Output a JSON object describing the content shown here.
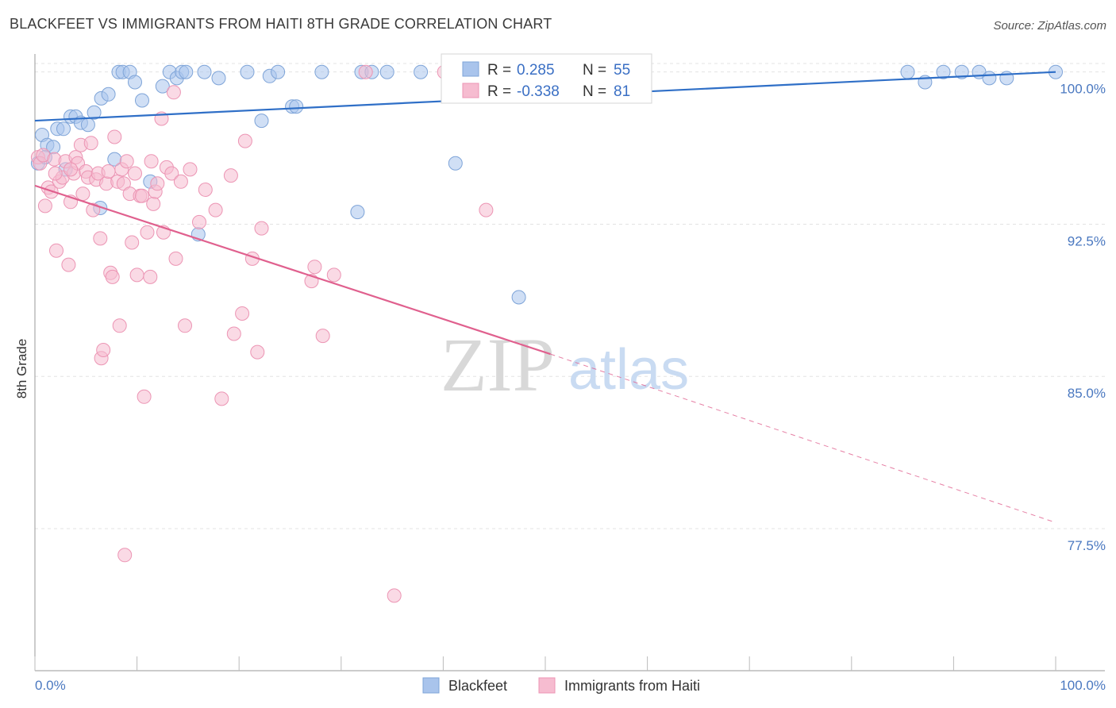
{
  "title": "BLACKFEET VS IMMIGRANTS FROM HAITI 8TH GRADE CORRELATION CHART",
  "source": "Source: ZipAtlas.com",
  "watermark": {
    "zip": "ZIP",
    "atlas": "atlas"
  },
  "chart_data": {
    "type": "scatter",
    "title": "BLACKFEET VS IMMIGRANTS FROM HAITI 8TH GRADE CORRELATION CHART",
    "xlabel": "",
    "ylabel": "8th Grade",
    "xlim": [
      0,
      100
    ],
    "ylim": [
      70.5,
      101.2
    ],
    "x_tick_labels": [
      "0.0%",
      "100.0%"
    ],
    "y_ticks": [
      {
        "value": 100.0,
        "label": "100.0%"
      },
      {
        "value": 92.5,
        "label": "92.5%"
      },
      {
        "value": 85.0,
        "label": "85.0%"
      },
      {
        "value": 77.5,
        "label": "77.5%"
      }
    ],
    "grid": true,
    "legend_position": "bottom",
    "stats": [
      {
        "r_label": "R =",
        "r_value": "0.285",
        "n_label": "N =",
        "n_value": "55"
      },
      {
        "r_label": "R =",
        "r_value": "-0.338",
        "n_label": "N =",
        "n_value": "81"
      }
    ],
    "series": [
      {
        "name": "Blackfeet",
        "color": "#a9c4ec",
        "stroke": "#7ea4d8",
        "line_color": "#2f6fc7",
        "trend": {
          "x0": 0,
          "y0": 97.6,
          "x1": 100,
          "y1": 100.0
        },
        "points": [
          [
            0.3,
            95.5
          ],
          [
            0.7,
            96.9
          ],
          [
            1.2,
            96.4
          ],
          [
            1.8,
            96.3
          ],
          [
            2.2,
            97.2
          ],
          [
            2.8,
            97.2
          ],
          [
            3.5,
            97.8
          ],
          [
            4.0,
            97.8
          ],
          [
            4.5,
            97.5
          ],
          [
            5.2,
            97.4
          ],
          [
            5.8,
            98.0
          ],
          [
            6.5,
            98.7
          ],
          [
            7.2,
            98.9
          ],
          [
            8.2,
            100.0
          ],
          [
            8.6,
            100.0
          ],
          [
            9.3,
            100.0
          ],
          [
            9.8,
            99.5
          ],
          [
            10.5,
            98.6
          ],
          [
            12.5,
            99.3
          ],
          [
            13.2,
            100.0
          ],
          [
            13.9,
            99.7
          ],
          [
            14.4,
            100.0
          ],
          [
            14.8,
            100.0
          ],
          [
            16.6,
            100.0
          ],
          [
            18.0,
            99.7
          ],
          [
            20.8,
            100.0
          ],
          [
            22.2,
            97.6
          ],
          [
            23.0,
            99.8
          ],
          [
            23.8,
            100.0
          ],
          [
            25.2,
            98.3
          ],
          [
            25.6,
            98.3
          ],
          [
            28.1,
            100.0
          ],
          [
            32.0,
            100.0
          ],
          [
            33.0,
            100.0
          ],
          [
            34.5,
            100.0
          ],
          [
            37.8,
            100.0
          ],
          [
            40.5,
            100.0
          ],
          [
            42.0,
            100.0
          ],
          [
            7.8,
            95.7
          ],
          [
            11.3,
            94.6
          ],
          [
            6.4,
            93.3
          ],
          [
            16.0,
            92.0
          ],
          [
            31.6,
            93.1
          ],
          [
            41.2,
            95.5
          ],
          [
            47.4,
            88.9
          ],
          [
            85.5,
            100.0
          ],
          [
            87.2,
            99.5
          ],
          [
            89.0,
            100.0
          ],
          [
            90.8,
            100.0
          ],
          [
            92.5,
            100.0
          ],
          [
            93.5,
            99.7
          ],
          [
            95.2,
            99.7
          ],
          [
            100.0,
            100.0
          ],
          [
            3.0,
            95.2
          ],
          [
            1.0,
            95.8
          ]
        ]
      },
      {
        "name": "Immigrants from Haiti",
        "color": "#f6bcd0",
        "stroke": "#ec95b4",
        "line_color": "#e0608e",
        "trend": {
          "x0": 0,
          "y0": 94.4,
          "x1": 50.5,
          "y1": 86.1
        },
        "trend_dashed": {
          "x0": 50.5,
          "y0": 86.1,
          "x1": 100,
          "y1": 77.8
        },
        "points": [
          [
            0.3,
            95.8
          ],
          [
            0.5,
            95.5
          ],
          [
            0.8,
            95.9
          ],
          [
            1.0,
            93.4
          ],
          [
            1.3,
            94.3
          ],
          [
            1.6,
            94.1
          ],
          [
            1.9,
            95.7
          ],
          [
            2.1,
            91.2
          ],
          [
            2.4,
            94.6
          ],
          [
            2.7,
            94.8
          ],
          [
            3.0,
            95.6
          ],
          [
            3.3,
            90.5
          ],
          [
            3.5,
            93.6
          ],
          [
            3.8,
            95.0
          ],
          [
            4.0,
            95.8
          ],
          [
            4.2,
            95.5
          ],
          [
            4.5,
            96.4
          ],
          [
            4.7,
            94.0
          ],
          [
            5.0,
            95.1
          ],
          [
            5.2,
            94.8
          ],
          [
            5.5,
            96.5
          ],
          [
            5.7,
            93.2
          ],
          [
            6.0,
            94.7
          ],
          [
            6.2,
            95.0
          ],
          [
            6.4,
            91.8
          ],
          [
            6.5,
            85.9
          ],
          [
            6.7,
            86.3
          ],
          [
            7.0,
            94.5
          ],
          [
            7.2,
            95.1
          ],
          [
            7.4,
            90.1
          ],
          [
            7.6,
            89.9
          ],
          [
            7.8,
            96.8
          ],
          [
            8.1,
            94.6
          ],
          [
            8.3,
            87.5
          ],
          [
            8.5,
            95.2
          ],
          [
            8.7,
            94.5
          ],
          [
            8.8,
            76.2
          ],
          [
            9.0,
            95.6
          ],
          [
            9.3,
            94.0
          ],
          [
            9.5,
            91.6
          ],
          [
            9.8,
            95.0
          ],
          [
            10.0,
            90.0
          ],
          [
            10.3,
            93.9
          ],
          [
            10.5,
            93.9
          ],
          [
            10.7,
            84.0
          ],
          [
            11.0,
            92.1
          ],
          [
            11.3,
            89.9
          ],
          [
            11.4,
            95.6
          ],
          [
            11.6,
            93.5
          ],
          [
            11.8,
            94.1
          ],
          [
            12.0,
            94.5
          ],
          [
            12.4,
            97.7
          ],
          [
            12.6,
            92.1
          ],
          [
            12.9,
            95.3
          ],
          [
            13.4,
            95.0
          ],
          [
            13.6,
            99.0
          ],
          [
            13.8,
            90.8
          ],
          [
            14.3,
            94.6
          ],
          [
            14.7,
            87.5
          ],
          [
            15.2,
            95.2
          ],
          [
            16.1,
            92.6
          ],
          [
            16.7,
            94.2
          ],
          [
            17.7,
            93.2
          ],
          [
            18.3,
            83.9
          ],
          [
            19.2,
            94.9
          ],
          [
            19.5,
            87.1
          ],
          [
            20.3,
            88.1
          ],
          [
            20.6,
            96.6
          ],
          [
            21.3,
            90.8
          ],
          [
            21.8,
            86.2
          ],
          [
            22.2,
            92.3
          ],
          [
            27.1,
            89.7
          ],
          [
            27.4,
            90.4
          ],
          [
            28.2,
            87.0
          ],
          [
            29.3,
            90.0
          ],
          [
            32.4,
            100.0
          ],
          [
            35.2,
            74.2
          ],
          [
            40.1,
            100.0
          ],
          [
            44.2,
            93.2
          ],
          [
            3.5,
            95.2
          ],
          [
            2.0,
            95.0
          ]
        ]
      }
    ]
  },
  "legend": {
    "items": [
      {
        "label": "Blackfeet"
      },
      {
        "label": "Immigrants from Haiti"
      }
    ]
  }
}
